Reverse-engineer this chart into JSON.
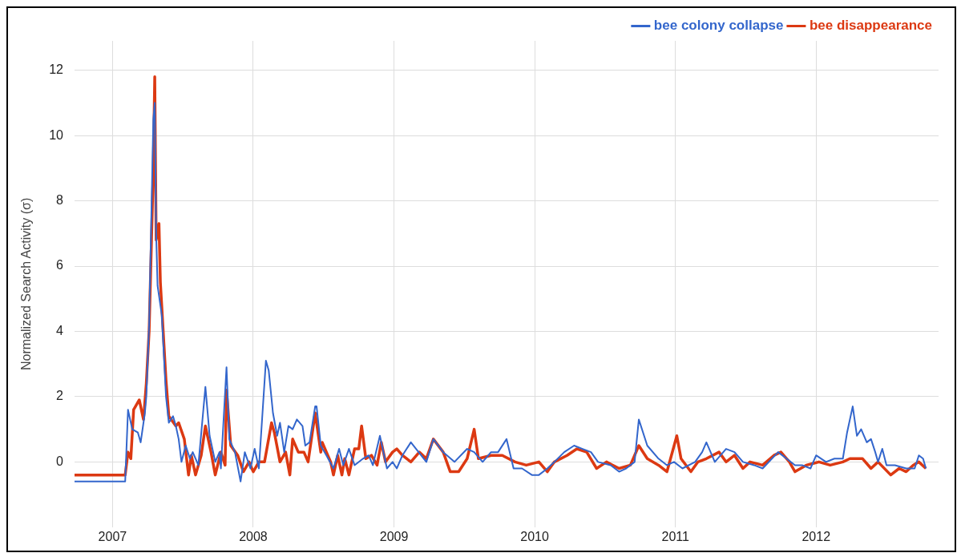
{
  "chart_data": {
    "type": "line",
    "ylabel": "Normalized Search Activity (σ)",
    "xlim": [
      2006.73,
      2012.87
    ],
    "xticks": [
      2007,
      2008,
      2009,
      2010,
      2011,
      2012
    ],
    "ylim": [
      -2.0,
      12.9
    ],
    "yticks": [
      0,
      2,
      4,
      6,
      8,
      10,
      12
    ],
    "grid": true,
    "legend": "top right",
    "marker": "none",
    "line_style": "solid",
    "series": [
      {
        "name": "bee colony collapse",
        "color": "#3366cc",
        "x": [
          2006.73,
          2007.09,
          2007.11,
          2007.14,
          2007.18,
          2007.2,
          2007.23,
          2007.24,
          2007.26,
          2007.29,
          2007.3,
          2007.31,
          2007.32,
          2007.35,
          2007.38,
          2007.4,
          2007.43,
          2007.45,
          2007.47,
          2007.49,
          2007.52,
          2007.55,
          2007.57,
          2007.61,
          2007.66,
          2007.69,
          2007.73,
          2007.76,
          2007.77,
          2007.81,
          2007.83,
          2007.87,
          2007.91,
          2007.94,
          2007.98,
          2008.01,
          2008.04,
          2008.09,
          2008.11,
          2008.14,
          2008.17,
          2008.19,
          2008.22,
          2008.25,
          2008.28,
          2008.31,
          2008.35,
          2008.37,
          2008.4,
          2008.44,
          2008.45,
          2008.48,
          2008.52,
          2008.57,
          2008.61,
          2008.64,
          2008.68,
          2008.72,
          2008.78,
          2008.82,
          2008.85,
          2008.9,
          2008.95,
          2008.99,
          2009.02,
          2009.06,
          2009.12,
          2009.23,
          2009.28,
          2009.35,
          2009.43,
          2009.52,
          2009.57,
          2009.63,
          2009.69,
          2009.74,
          2009.8,
          2009.85,
          2009.91,
          2009.98,
          2010.03,
          2010.09,
          2010.14,
          2010.21,
          2010.28,
          2010.34,
          2010.4,
          2010.45,
          2010.54,
          2010.6,
          2010.65,
          2010.71,
          2010.74,
          2010.8,
          2010.88,
          2010.94,
          2010.99,
          2011.05,
          2011.14,
          2011.19,
          2011.22,
          2011.28,
          2011.36,
          2011.42,
          2011.48,
          2011.56,
          2011.62,
          2011.73,
          2011.79,
          2011.85,
          2011.9,
          2011.96,
          2012,
          2012.07,
          2012.13,
          2012.19,
          2012.22,
          2012.26,
          2012.29,
          2012.32,
          2012.36,
          2012.39,
          2012.42,
          2012.44,
          2012.47,
          2012.5,
          2012.56,
          2012.64,
          2012.7,
          2012.73,
          2012.76,
          2012.78
        ],
        "values": [
          -0.6,
          -0.6,
          1.6,
          1.0,
          0.9,
          0.6,
          1.5,
          2.0,
          4.2,
          10.5,
          11.0,
          7.0,
          5.4,
          4.5,
          2.0,
          1.2,
          1.4,
          1.1,
          0.7,
          0.0,
          0.5,
          0.1,
          0.3,
          -0.1,
          2.3,
          0.8,
          0.0,
          0.3,
          -0.2,
          2.9,
          0.7,
          0.3,
          -0.6,
          0.3,
          -0.2,
          0.4,
          -0.2,
          3.1,
          2.8,
          1.5,
          0.8,
          1.2,
          0.3,
          1.1,
          1.0,
          1.3,
          1.1,
          0.5,
          0.6,
          1.7,
          1.7,
          0.5,
          0.2,
          -0.2,
          0.4,
          -0.1,
          0.4,
          -0.1,
          0.1,
          0.2,
          -0.1,
          0.8,
          -0.2,
          0.0,
          -0.2,
          0.2,
          0.6,
          0.0,
          0.7,
          0.3,
          0.0,
          0.4,
          0.3,
          0.0,
          0.3,
          0.3,
          0.7,
          -0.2,
          -0.2,
          -0.4,
          -0.4,
          -0.2,
          0.0,
          0.3,
          0.5,
          0.4,
          0.3,
          0.0,
          -0.1,
          -0.3,
          -0.2,
          0.0,
          1.3,
          0.5,
          0.1,
          -0.1,
          0.0,
          -0.2,
          0.0,
          0.3,
          0.6,
          0.0,
          0.4,
          0.3,
          0.0,
          -0.1,
          -0.2,
          0.3,
          0.1,
          -0.1,
          -0.1,
          -0.2,
          0.2,
          0.0,
          0.1,
          0.1,
          0.9,
          1.7,
          0.8,
          1.0,
          0.6,
          0.7,
          0.3,
          0.0,
          0.4,
          -0.1,
          -0.1,
          -0.2,
          -0.2,
          0.2,
          0.1,
          -0.2
        ]
      },
      {
        "name": "bee disappearance",
        "color": "#dc3912",
        "x": [
          2006.73,
          2007.09,
          2007.11,
          2007.13,
          2007.15,
          2007.19,
          2007.22,
          2007.24,
          2007.26,
          2007.29,
          2007.3,
          2007.31,
          2007.33,
          2007.34,
          2007.38,
          2007.4,
          2007.45,
          2007.47,
          2007.51,
          2007.54,
          2007.56,
          2007.59,
          2007.63,
          2007.66,
          2007.7,
          2007.73,
          2007.77,
          2007.8,
          2007.81,
          2007.84,
          2007.89,
          2007.93,
          2007.97,
          2008,
          2008.04,
          2008.08,
          2008.13,
          2008.15,
          2008.19,
          2008.23,
          2008.26,
          2008.28,
          2008.32,
          2008.36,
          2008.39,
          2008.44,
          2008.48,
          2008.49,
          2008.55,
          2008.57,
          2008.6,
          2008.63,
          2008.65,
          2008.68,
          2008.72,
          2008.75,
          2008.77,
          2008.8,
          2008.84,
          2008.88,
          2008.91,
          2008.94,
          2008.99,
          2009.02,
          2009.06,
          2009.12,
          2009.18,
          2009.23,
          2009.28,
          2009.35,
          2009.4,
          2009.46,
          2009.52,
          2009.57,
          2009.6,
          2009.69,
          2009.77,
          2009.86,
          2009.94,
          2010.03,
          2010.09,
          2010.14,
          2010.23,
          2010.3,
          2010.37,
          2010.44,
          2010.51,
          2010.6,
          2010.68,
          2010.74,
          2010.8,
          2010.88,
          2010.94,
          2011.01,
          2011.04,
          2011.11,
          2011.16,
          2011.22,
          2011.31,
          2011.36,
          2011.42,
          2011.48,
          2011.53,
          2011.62,
          2011.7,
          2011.75,
          2011.81,
          2011.85,
          2011.93,
          2012.02,
          2012.1,
          2012.19,
          2012.24,
          2012.33,
          2012.39,
          2012.44,
          2012.53,
          2012.59,
          2012.64,
          2012.69,
          2012.73,
          2012.78
        ],
        "values": [
          -0.4,
          -0.4,
          0.3,
          0.1,
          1.6,
          1.9,
          1.3,
          2.4,
          4.0,
          9.0,
          11.8,
          6.8,
          7.3,
          5.5,
          2.5,
          1.4,
          1.1,
          1.2,
          0.7,
          -0.4,
          0.2,
          -0.4,
          0.2,
          1.1,
          0.3,
          -0.4,
          0.3,
          -0.1,
          2.2,
          0.5,
          0.2,
          -0.3,
          0.0,
          -0.3,
          0.0,
          0.0,
          1.2,
          0.9,
          0.0,
          0.3,
          -0.4,
          0.7,
          0.3,
          0.3,
          0.0,
          1.5,
          0.3,
          0.6,
          0.0,
          -0.4,
          0.2,
          -0.4,
          0.1,
          -0.4,
          0.4,
          0.4,
          1.1,
          0.1,
          0.2,
          -0.1,
          0.6,
          0.0,
          0.3,
          0.4,
          0.2,
          0.0,
          0.3,
          0.1,
          0.7,
          0.3,
          -0.3,
          -0.3,
          0.1,
          1.0,
          0.1,
          0.2,
          0.2,
          0.0,
          -0.1,
          0.0,
          -0.3,
          0.0,
          0.2,
          0.4,
          0.3,
          -0.2,
          0.0,
          -0.2,
          -0.1,
          0.5,
          0.1,
          -0.1,
          -0.3,
          0.8,
          0.1,
          -0.3,
          0.0,
          0.1,
          0.3,
          0.0,
          0.2,
          -0.2,
          0.0,
          -0.1,
          0.2,
          0.3,
          0.0,
          -0.3,
          -0.1,
          0.0,
          -0.1,
          0.0,
          0.1,
          0.1,
          -0.2,
          0.0,
          -0.4,
          -0.2,
          -0.3,
          -0.1,
          0.0,
          -0.2
        ]
      }
    ]
  }
}
